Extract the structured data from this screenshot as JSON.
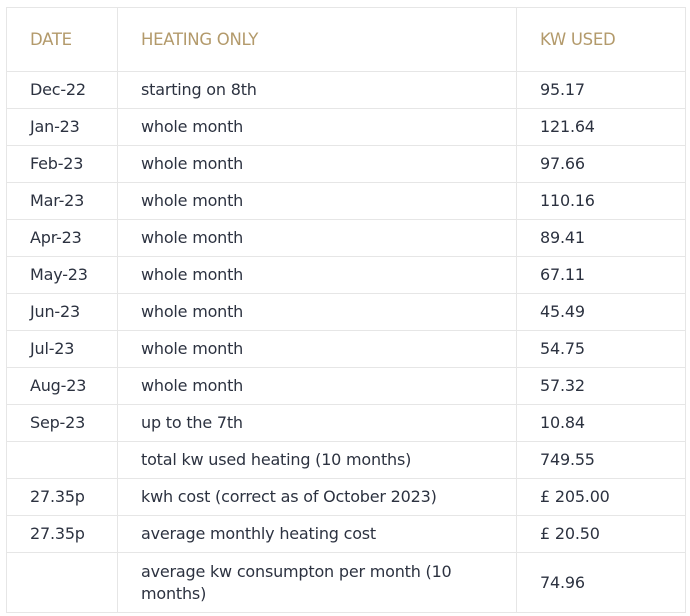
{
  "table": {
    "headers": [
      "DATE",
      "HEATING ONLY",
      "KW USED"
    ],
    "rows": [
      [
        "Dec-22",
        "starting on 8th",
        "95.17"
      ],
      [
        "Jan-23",
        "whole month",
        "121.64"
      ],
      [
        "Feb-23",
        "whole month",
        "97.66"
      ],
      [
        "Mar-23",
        "whole month",
        "110.16"
      ],
      [
        "Apr-23",
        "whole month",
        "89.41"
      ],
      [
        "May-23",
        "whole month",
        "67.11"
      ],
      [
        "Jun-23",
        "whole month",
        "45.49"
      ],
      [
        "Jul-23",
        "whole month",
        "54.75"
      ],
      [
        "Aug-23",
        "whole month",
        "57.32"
      ],
      [
        "Sep-23",
        "up to the 7th",
        "10.84"
      ],
      [
        "",
        "total kw used heating (10 months)",
        "749.55"
      ],
      [
        "27.35p",
        "kwh cost (correct as of October 2023)",
        "£ 205.00"
      ],
      [
        "27.35p",
        "average monthly heating cost",
        "£ 20.50"
      ],
      [
        "",
        "average kw consumpton per month (10 months)",
        "74.96"
      ]
    ]
  },
  "colors": {
    "header_text": "#b39a6b",
    "body_text": "#2c3240",
    "border": "#e6e6e6"
  }
}
